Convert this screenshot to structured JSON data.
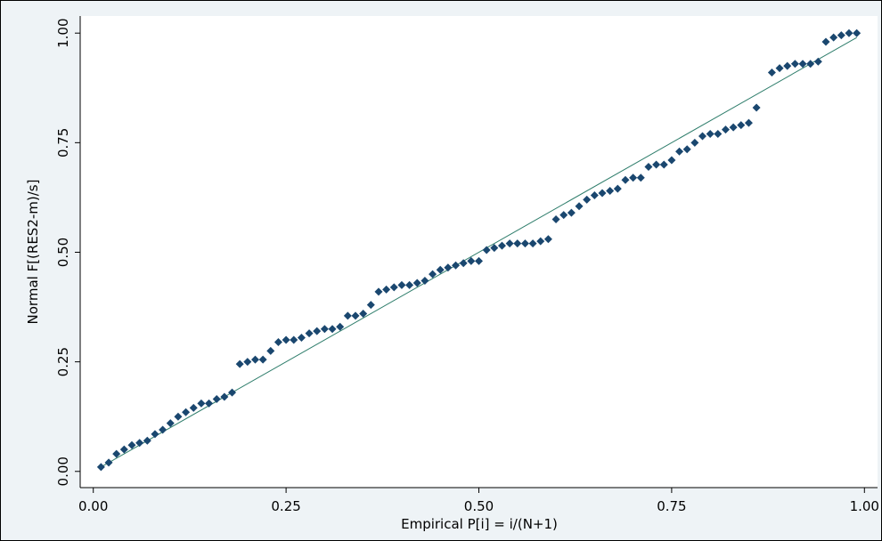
{
  "chart_data": {
    "type": "scatter",
    "x_label": "Empirical P[i] = i/(N+1)",
    "y_label": "Normal F[(RES2-m)/s]",
    "xlim": [
      -0.017,
      1.017
    ],
    "ylim": [
      -0.037,
      1.039
    ],
    "xticks": [
      {
        "value": 0,
        "label": "0.00"
      },
      {
        "value": 0.25,
        "label": "0.25"
      },
      {
        "value": 0.5,
        "label": "0.50"
      },
      {
        "value": 0.75,
        "label": "0.75"
      },
      {
        "value": 1,
        "label": "1.00"
      }
    ],
    "yticks": [
      {
        "value": 0,
        "label": "0.00"
      },
      {
        "value": 0.25,
        "label": "0.25"
      },
      {
        "value": 0.5,
        "label": "0.50"
      },
      {
        "value": 0.75,
        "label": "0.75"
      },
      {
        "value": 1,
        "label": "1.00"
      }
    ],
    "marker_color": "#1a476f",
    "reference_line_color": "#2e7d6b",
    "x": [
      0.01,
      0.02,
      0.03,
      0.04,
      0.05,
      0.06,
      0.07,
      0.08,
      0.09,
      0.1,
      0.11,
      0.12,
      0.13,
      0.14,
      0.15,
      0.16,
      0.17,
      0.18,
      0.19,
      0.2,
      0.21,
      0.22,
      0.23,
      0.24,
      0.25,
      0.26,
      0.27,
      0.28,
      0.29,
      0.3,
      0.31,
      0.32,
      0.33,
      0.34,
      0.35,
      0.36,
      0.37,
      0.38,
      0.39,
      0.4,
      0.41,
      0.42,
      0.43,
      0.44,
      0.45,
      0.46,
      0.47,
      0.48,
      0.49,
      0.5,
      0.51,
      0.52,
      0.53,
      0.54,
      0.55,
      0.56,
      0.57,
      0.58,
      0.59,
      0.6,
      0.61,
      0.62,
      0.63,
      0.64,
      0.65,
      0.66,
      0.67,
      0.68,
      0.69,
      0.7,
      0.71,
      0.72,
      0.73,
      0.74,
      0.75,
      0.76,
      0.77,
      0.78,
      0.79,
      0.8,
      0.81,
      0.82,
      0.83,
      0.84,
      0.85,
      0.86,
      0.88,
      0.89,
      0.9,
      0.91,
      0.92,
      0.93,
      0.94,
      0.95,
      0.96,
      0.97,
      0.98,
      0.99
    ],
    "y": [
      0.01,
      0.02,
      0.04,
      0.05,
      0.06,
      0.065,
      0.07,
      0.085,
      0.095,
      0.11,
      0.125,
      0.135,
      0.145,
      0.155,
      0.155,
      0.165,
      0.17,
      0.18,
      0.245,
      0.25,
      0.255,
      0.255,
      0.275,
      0.295,
      0.3,
      0.3,
      0.305,
      0.315,
      0.32,
      0.325,
      0.325,
      0.33,
      0.355,
      0.355,
      0.36,
      0.38,
      0.41,
      0.415,
      0.42,
      0.425,
      0.425,
      0.43,
      0.435,
      0.45,
      0.46,
      0.465,
      0.47,
      0.475,
      0.48,
      0.48,
      0.505,
      0.51,
      0.515,
      0.52,
      0.52,
      0.52,
      0.52,
      0.525,
      0.53,
      0.575,
      0.585,
      0.59,
      0.605,
      0.62,
      0.63,
      0.635,
      0.64,
      0.645,
      0.665,
      0.67,
      0.67,
      0.695,
      0.7,
      0.7,
      0.71,
      0.73,
      0.735,
      0.75,
      0.765,
      0.77,
      0.77,
      0.78,
      0.785,
      0.79,
      0.795,
      0.83,
      0.91,
      0.92,
      0.925,
      0.93,
      0.93,
      0.93,
      0.935,
      0.98,
      0.99,
      0.995,
      1.0,
      1.0
    ]
  }
}
